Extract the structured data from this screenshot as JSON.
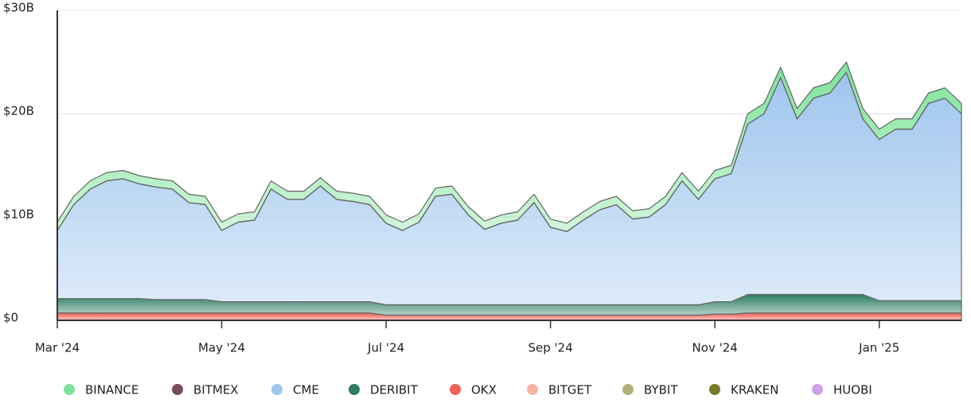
{
  "chart_data": {
    "type": "stacked-area",
    "categories": [
      "Mar '24",
      null,
      null,
      null,
      null,
      null,
      null,
      null,
      null,
      null,
      "May '24",
      null,
      null,
      null,
      null,
      null,
      null,
      null,
      null,
      null,
      "Jul '24",
      null,
      null,
      null,
      null,
      null,
      null,
      null,
      null,
      null,
      "Sep '24",
      null,
      null,
      null,
      null,
      null,
      null,
      null,
      null,
      null,
      "Nov '24",
      null,
      null,
      null,
      null,
      null,
      null,
      null,
      null,
      null,
      "Jan '25",
      null,
      null,
      null,
      null,
      null
    ],
    "ylim": [
      0,
      30
    ],
    "yticks": [
      {
        "value": 0,
        "label": "$0"
      },
      {
        "value": 10,
        "label": "$10B"
      },
      {
        "value": 20,
        "label": "$20B"
      },
      {
        "value": 30,
        "label": "$30B"
      }
    ],
    "grid": true,
    "legend": "bottom",
    "series": [
      {
        "name": "BINANCE",
        "color": "#7de39a",
        "values": [
          0.8,
          0.8,
          0.8,
          0.8,
          0.8,
          0.8,
          0.8,
          0.8,
          0.8,
          0.8,
          0.8,
          0.8,
          0.8,
          0.8,
          0.8,
          0.8,
          0.8,
          0.8,
          0.8,
          0.8,
          0.8,
          0.8,
          0.8,
          0.8,
          0.8,
          0.8,
          0.8,
          0.8,
          0.8,
          0.8,
          0.8,
          0.8,
          0.8,
          0.8,
          0.8,
          0.8,
          0.8,
          0.8,
          0.8,
          0.8,
          0.8,
          0.8,
          1.0,
          1.0,
          1.0,
          1.0,
          1.0,
          1.0,
          1.0,
          1.0,
          1.0,
          1.0,
          1.0,
          1.0,
          1.0,
          1.0
        ]
      },
      {
        "name": "BITMEX",
        "color": "#7a4a5e",
        "values": [
          0,
          0,
          0,
          0,
          0,
          0,
          0,
          0,
          0,
          0,
          0,
          0,
          0,
          0,
          0,
          0,
          0,
          0,
          0,
          0,
          0,
          0,
          0,
          0,
          0,
          0,
          0,
          0,
          0,
          0,
          0,
          0,
          0,
          0,
          0,
          0,
          0,
          0,
          0,
          0,
          0,
          0,
          0,
          0,
          0,
          0,
          0,
          0,
          0,
          0,
          0,
          0,
          0,
          0,
          0,
          0
        ]
      },
      {
        "name": "CME",
        "color": "#9ec5ee",
        "values": [
          6.6,
          9.1,
          10.6,
          11.4,
          11.6,
          11.1,
          10.9,
          10.7,
          9.4,
          9.2,
          6.9,
          7.7,
          7.9,
          10.9,
          9.9,
          9.9,
          11.2,
          9.9,
          9.7,
          9.4,
          7.9,
          7.2,
          8.0,
          10.5,
          10.7,
          8.7,
          7.3,
          7.9,
          8.2,
          9.9,
          7.5,
          7.1,
          8.2,
          9.2,
          9.7,
          8.3,
          8.5,
          9.7,
          12.0,
          10.2,
          11.9,
          12.4,
          16.5,
          17.5,
          21.0,
          17.0,
          19.0,
          19.5,
          21.5,
          17.0,
          15.6,
          16.6,
          16.6,
          19.1,
          19.6,
          18.1
        ]
      },
      {
        "name": "DERIBIT",
        "color": "#2e7d62",
        "values": [
          1.4,
          1.4,
          1.4,
          1.4,
          1.4,
          1.4,
          1.3,
          1.3,
          1.3,
          1.3,
          1.1,
          1.1,
          1.1,
          1.1,
          1.1,
          1.1,
          1.1,
          1.1,
          1.1,
          1.1,
          1.0,
          1.0,
          1.0,
          1.0,
          1.0,
          1.0,
          1.0,
          1.0,
          1.0,
          1.0,
          1.0,
          1.0,
          1.0,
          1.0,
          1.0,
          1.0,
          1.0,
          1.0,
          1.0,
          1.0,
          1.2,
          1.2,
          1.8,
          1.8,
          1.8,
          1.8,
          1.8,
          1.8,
          1.8,
          1.8,
          1.2,
          1.2,
          1.2,
          1.2,
          1.2,
          1.2
        ]
      },
      {
        "name": "OKX",
        "color": "#f06055",
        "values": [
          0.7,
          0.7,
          0.7,
          0.7,
          0.7,
          0.7,
          0.7,
          0.7,
          0.7,
          0.7,
          0.7,
          0.7,
          0.7,
          0.7,
          0.7,
          0.7,
          0.7,
          0.7,
          0.7,
          0.7,
          0.5,
          0.5,
          0.5,
          0.5,
          0.5,
          0.5,
          0.5,
          0.5,
          0.5,
          0.5,
          0.5,
          0.5,
          0.5,
          0.5,
          0.5,
          0.5,
          0.5,
          0.5,
          0.5,
          0.5,
          0.6,
          0.6,
          0.7,
          0.7,
          0.7,
          0.7,
          0.7,
          0.7,
          0.7,
          0.7,
          0.7,
          0.7,
          0.7,
          0.7,
          0.7,
          0.7
        ]
      },
      {
        "name": "BITGET",
        "color": "#f7b4a4",
        "values": [
          0,
          0,
          0,
          0,
          0,
          0,
          0,
          0,
          0,
          0,
          0,
          0,
          0,
          0,
          0,
          0,
          0,
          0,
          0,
          0,
          0,
          0,
          0,
          0,
          0,
          0,
          0,
          0,
          0,
          0,
          0,
          0,
          0,
          0,
          0,
          0,
          0,
          0,
          0,
          0,
          0,
          0,
          0,
          0,
          0,
          0,
          0,
          0,
          0,
          0,
          0,
          0,
          0,
          0,
          0,
          0
        ]
      },
      {
        "name": "BYBIT",
        "color": "#b5b07a",
        "values": [
          0,
          0,
          0,
          0,
          0,
          0,
          0,
          0,
          0,
          0,
          0,
          0,
          0,
          0,
          0,
          0,
          0,
          0,
          0,
          0,
          0,
          0,
          0,
          0,
          0,
          0,
          0,
          0,
          0,
          0,
          0,
          0,
          0,
          0,
          0,
          0,
          0,
          0,
          0,
          0,
          0,
          0,
          0,
          0,
          0,
          0,
          0,
          0,
          0,
          0,
          0,
          0,
          0,
          0,
          0,
          0
        ]
      },
      {
        "name": "KRAKEN",
        "color": "#7a7a2a",
        "values": [
          0,
          0,
          0,
          0,
          0,
          0,
          0,
          0,
          0,
          0,
          0,
          0,
          0,
          0,
          0,
          0,
          0,
          0,
          0,
          0,
          0,
          0,
          0,
          0,
          0,
          0,
          0,
          0,
          0,
          0,
          0,
          0,
          0,
          0,
          0,
          0,
          0,
          0,
          0,
          0,
          0,
          0,
          0,
          0,
          0,
          0,
          0,
          0,
          0,
          0,
          0,
          0,
          0,
          0,
          0,
          0
        ]
      },
      {
        "name": "HUOBI",
        "color": "#cfa0ea",
        "values": [
          0,
          0,
          0,
          0,
          0,
          0,
          0,
          0,
          0,
          0,
          0,
          0,
          0,
          0,
          0,
          0,
          0,
          0,
          0,
          0,
          0,
          0,
          0,
          0,
          0,
          0,
          0,
          0,
          0,
          0,
          0,
          0,
          0,
          0,
          0,
          0,
          0,
          0,
          0,
          0,
          0,
          0,
          0,
          0,
          0,
          0,
          0,
          0,
          0,
          0,
          0,
          0,
          0,
          0,
          0,
          0
        ]
      }
    ]
  }
}
